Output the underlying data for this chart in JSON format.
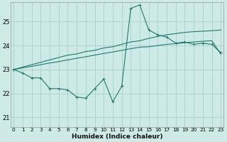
{
  "xlabel": "Humidex (Indice chaleur)",
  "bg_color": "#ceeae7",
  "grid_color": "#aad4cf",
  "line_color": "#1a7a6e",
  "x_ticks": [
    0,
    1,
    2,
    3,
    4,
    5,
    6,
    7,
    8,
    9,
    10,
    11,
    12,
    13,
    14,
    15,
    16,
    17,
    18,
    19,
    20,
    21,
    22,
    23
  ],
  "y_ticks": [
    21,
    22,
    23,
    24,
    25
  ],
  "ylim": [
    20.6,
    25.8
  ],
  "xlim": [
    -0.3,
    23.3
  ],
  "line1_y": [
    23.0,
    22.85,
    22.65,
    22.65,
    22.2,
    22.2,
    22.15,
    21.85,
    21.8,
    22.2,
    22.6,
    21.65,
    22.3,
    25.55,
    25.7,
    24.65,
    24.45,
    24.35,
    24.1,
    24.15,
    24.05,
    24.1,
    24.05,
    23.7
  ],
  "line2_y": [
    23.0,
    23.1,
    23.2,
    23.3,
    23.4,
    23.5,
    23.6,
    23.65,
    23.75,
    23.8,
    23.9,
    23.95,
    24.05,
    24.15,
    24.2,
    24.3,
    24.38,
    24.45,
    24.5,
    24.55,
    24.58,
    24.6,
    24.62,
    24.65
  ],
  "line3_y": [
    23.0,
    23.07,
    23.13,
    23.2,
    23.27,
    23.33,
    23.4,
    23.47,
    23.53,
    23.6,
    23.67,
    23.73,
    23.8,
    23.87,
    23.93,
    23.95,
    24.0,
    24.05,
    24.08,
    24.12,
    24.15,
    24.18,
    24.2,
    23.65
  ]
}
